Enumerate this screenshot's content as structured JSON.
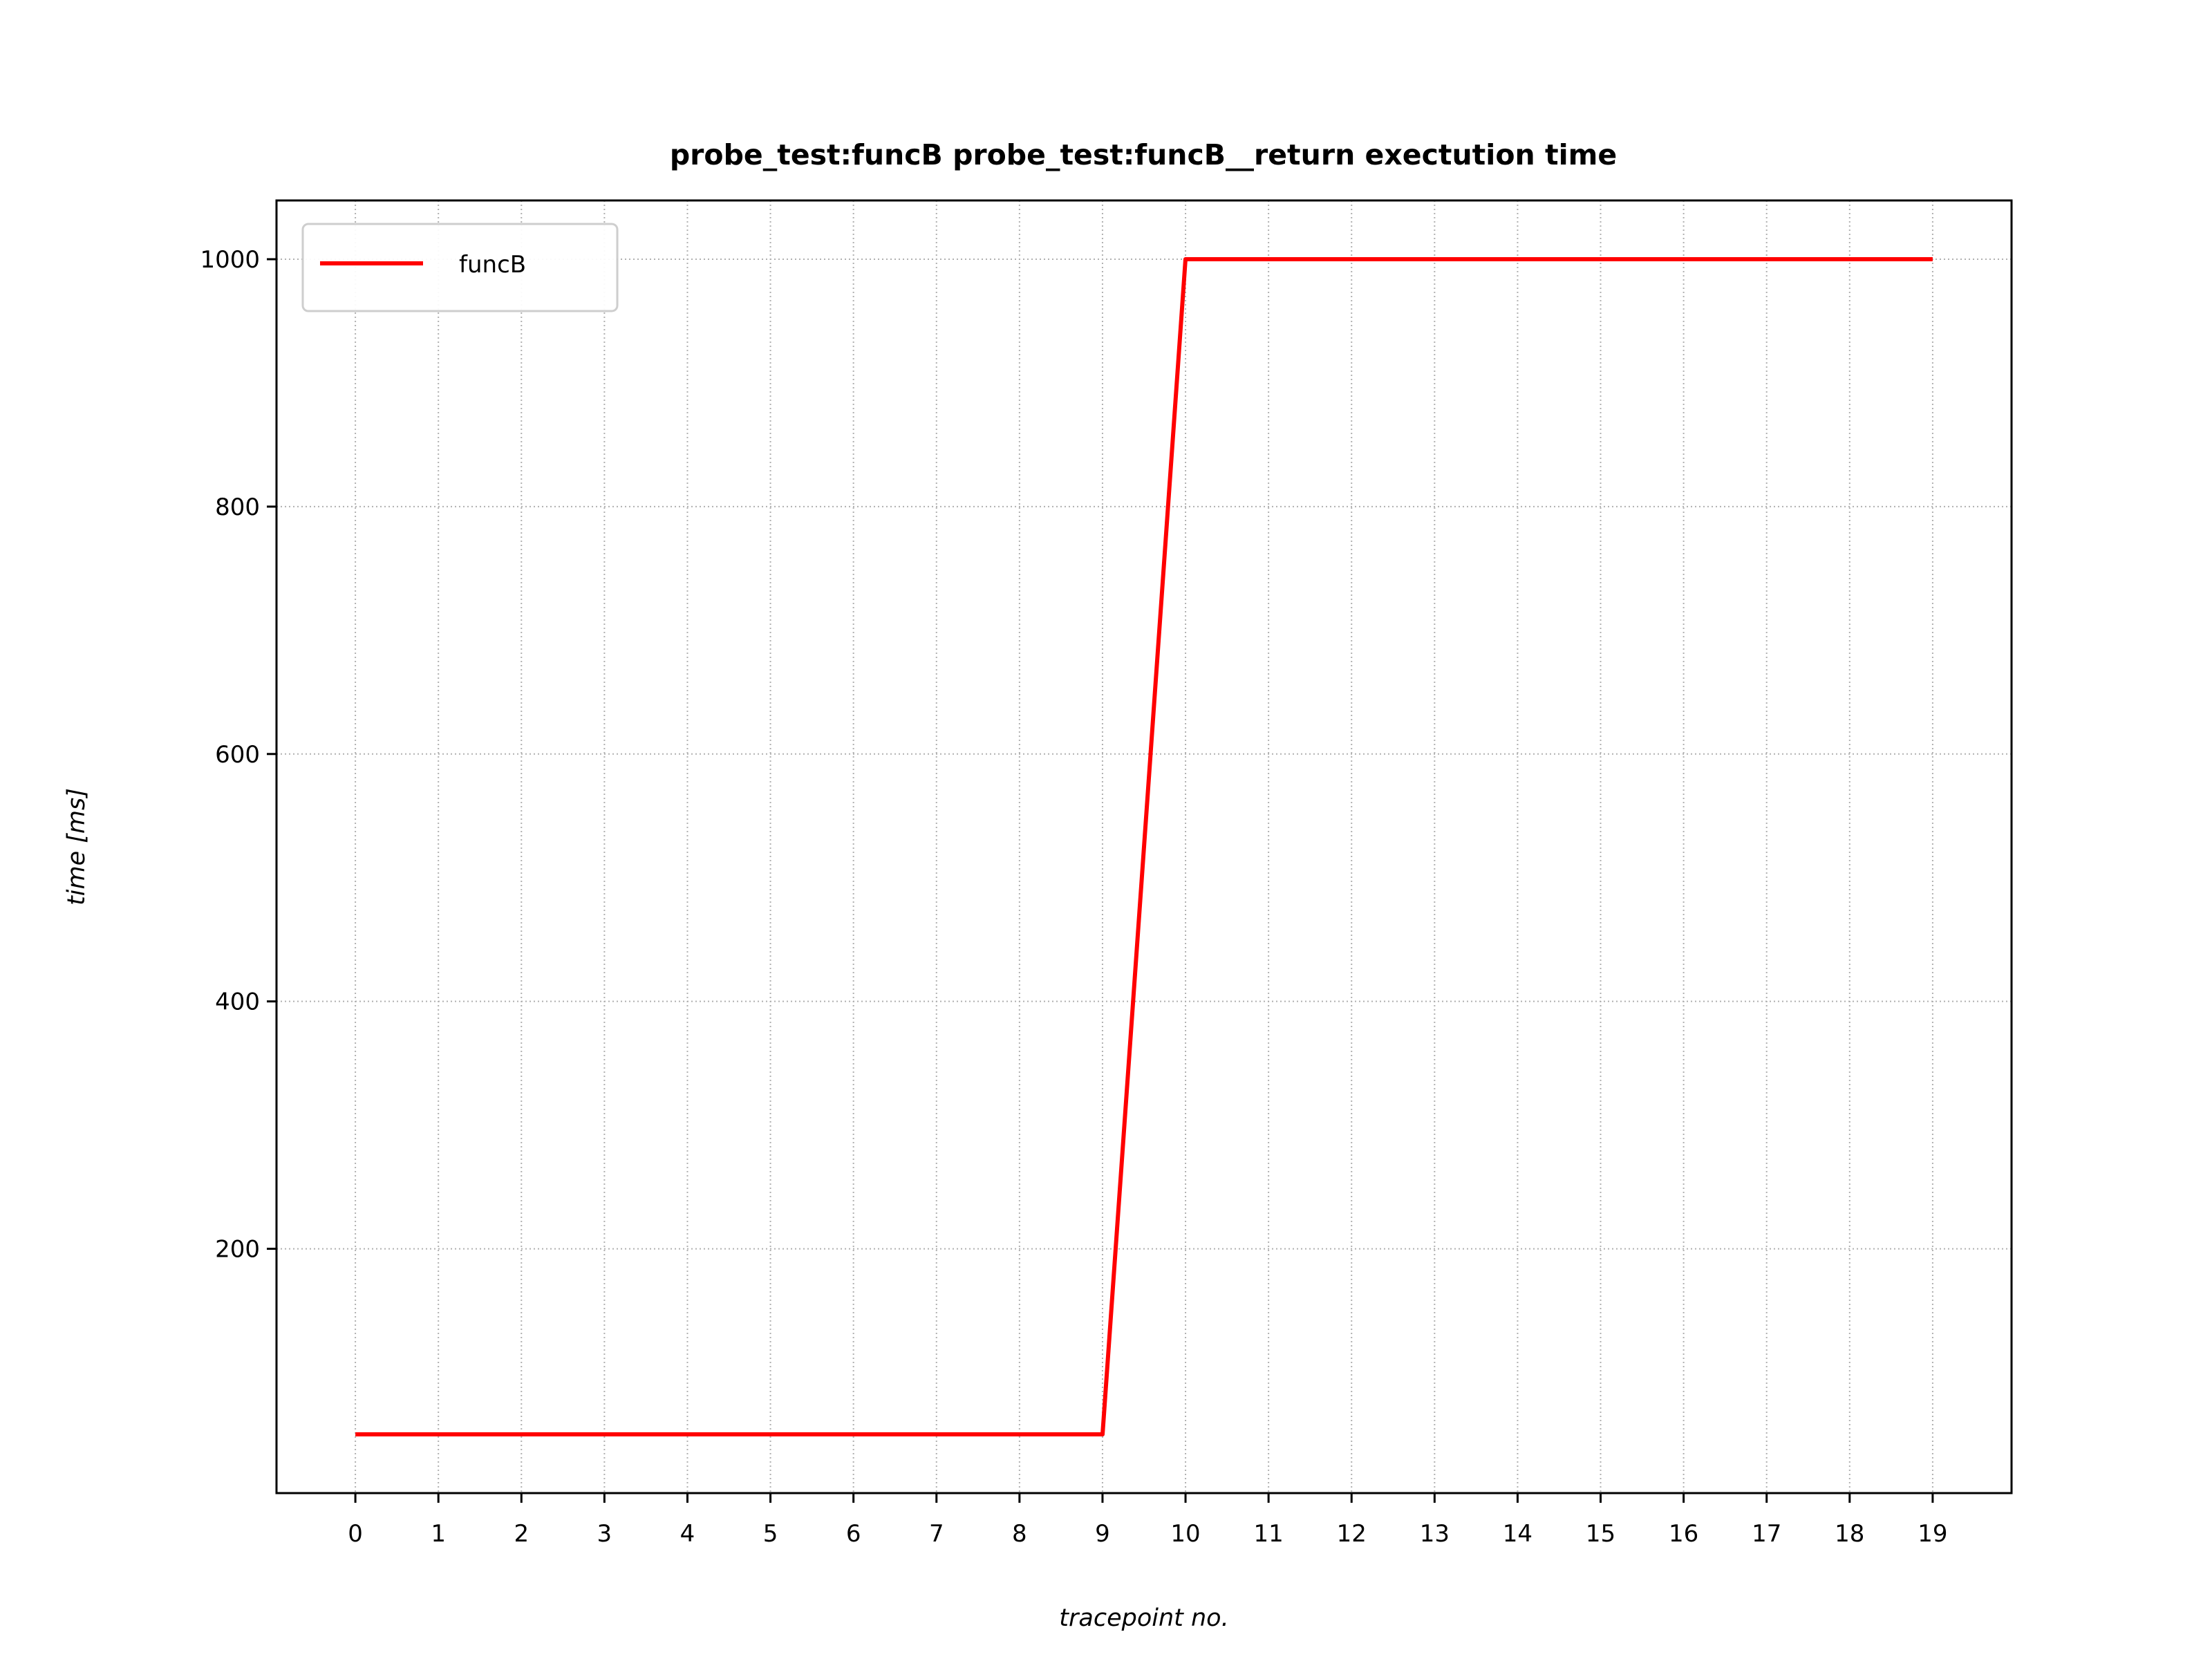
{
  "chart_data": {
    "type": "line",
    "title": "probe_test:funcB probe_test:funcB__return exectution time",
    "xlabel": "tracepoint no.",
    "ylabel": "time [ms]",
    "x": [
      0,
      1,
      2,
      3,
      4,
      5,
      6,
      7,
      8,
      9,
      10,
      11,
      12,
      13,
      14,
      15,
      16,
      17,
      18,
      19
    ],
    "xticks": [
      0,
      1,
      2,
      3,
      4,
      5,
      6,
      7,
      8,
      9,
      10,
      11,
      12,
      13,
      14,
      15,
      16,
      17,
      18,
      19
    ],
    "yticks": [
      200,
      400,
      600,
      800,
      1000
    ],
    "xlim": [
      -0.95,
      19.95
    ],
    "ylim": [
      2.5,
      1047.5
    ],
    "grid": true,
    "legend_position": "upper-left",
    "series": [
      {
        "name": "funcB",
        "color": "#ff0000",
        "values": [
          50,
          50,
          50,
          50,
          50,
          50,
          50,
          50,
          50,
          50,
          1000,
          1000,
          1000,
          1000,
          1000,
          1000,
          1000,
          1000,
          1000,
          1000
        ]
      }
    ]
  }
}
